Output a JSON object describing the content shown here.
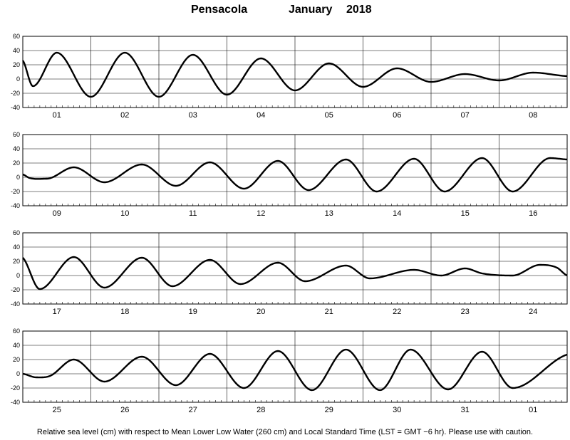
{
  "title": {
    "station": "Pensacola",
    "month": "January",
    "year": "2018"
  },
  "footnote": "Relative sea level (cm) with respect to Mean Lower Low Water (260 cm) and Local Standard Time (LST = GMT −6 hr). Please use with caution.",
  "chart_data": {
    "type": "line",
    "ylabel": "",
    "ylim": [
      -40,
      60
    ],
    "yticks": [
      -40,
      -20,
      0,
      20,
      40,
      60
    ],
    "grid": true,
    "panels": [
      {
        "days": [
          "01",
          "02",
          "03",
          "04",
          "05",
          "06",
          "07",
          "08"
        ],
        "x": [
          0,
          0.15,
          0.5,
          1,
          1.5,
          2,
          2.5,
          3,
          3.5,
          4,
          4.5,
          5,
          5.5,
          6,
          6.5,
          7,
          7.5,
          8
        ],
        "y": [
          26,
          -10,
          37,
          -25,
          37,
          -25,
          34,
          -22,
          29,
          -16,
          22,
          -11,
          15,
          -4,
          7,
          -2,
          9,
          4
        ]
      },
      {
        "days": [
          "09",
          "10",
          "11",
          "12",
          "13",
          "14",
          "15",
          "16"
        ],
        "x": [
          0,
          0.1,
          0.35,
          0.75,
          1.2,
          1.75,
          2.25,
          2.75,
          3.25,
          3.75,
          4.2,
          4.75,
          5.2,
          5.75,
          6.2,
          6.75,
          7.2,
          7.75,
          8
        ],
        "y": [
          4,
          -1,
          -2,
          14,
          -7,
          18,
          -12,
          21,
          -16,
          23,
          -18,
          25,
          -20,
          26,
          -20,
          27,
          -20,
          27,
          25
        ]
      },
      {
        "days": [
          "17",
          "18",
          "19",
          "20",
          "21",
          "22",
          "23",
          "24"
        ],
        "x": [
          0,
          0.25,
          0.75,
          1.2,
          1.75,
          2.2,
          2.75,
          3.2,
          3.75,
          4.15,
          4.75,
          5.1,
          5.75,
          6.15,
          6.5,
          6.75,
          7.2,
          7.6,
          7.85,
          8
        ],
        "y": [
          25,
          -19,
          26,
          -17,
          25,
          -15,
          22,
          -12,
          18,
          -8,
          14,
          -4,
          8,
          0,
          10,
          3,
          0,
          15,
          11,
          0
        ]
      },
      {
        "days": [
          "25",
          "26",
          "27",
          "28",
          "29",
          "30",
          "31",
          "01"
        ],
        "x": [
          0,
          0.2,
          0.4,
          0.75,
          1.2,
          1.75,
          2.25,
          2.75,
          3.25,
          3.75,
          4.25,
          4.75,
          5.25,
          5.7,
          6.25,
          6.75,
          7.2,
          8
        ],
        "y": [
          0,
          -5,
          -3,
          20,
          -11,
          24,
          -16,
          28,
          -20,
          32,
          -23,
          34,
          -23,
          34,
          -22,
          31,
          -20,
          27
        ]
      }
    ]
  }
}
